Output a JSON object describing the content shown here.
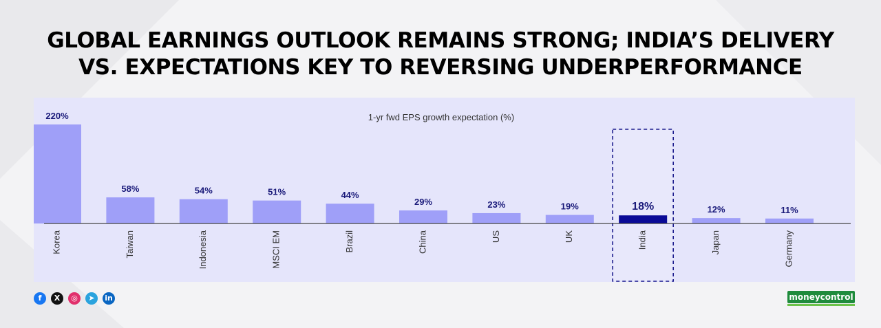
{
  "headline": {
    "line1": "GLOBAL EARNINGS OUTLOOK REMAINS STRONG; INDIA’S DELIVERY",
    "line2": "VS. EXPECTATIONS KEY TO REVERSING UNDERPERFORMANCE"
  },
  "chart_data": {
    "type": "bar",
    "title": "1-yr fwd EPS growth expectation (%)",
    "categories": [
      "Korea",
      "Taiwan",
      "Indonesia",
      "MSCI EM",
      "Brazil",
      "China",
      "US",
      "UK",
      "India",
      "Japan",
      "Germany"
    ],
    "values": [
      220,
      58,
      54,
      51,
      44,
      29,
      23,
      19,
      18,
      12,
      11
    ],
    "data_labels": [
      "220%",
      "58%",
      "54%",
      "51%",
      "44%",
      "29%",
      "23%",
      "19%",
      "18%",
      "12%",
      "11%"
    ],
    "highlight": "India",
    "ylim": [
      0,
      220
    ],
    "grid": false,
    "colors": {
      "bar": "#9f9ff8",
      "highlight_bar": "#0a0a96",
      "label": "#1a1a7a",
      "box": "#1a1a8c",
      "panel": "#e5e5fb"
    }
  },
  "social": [
    {
      "icon": "facebook-icon",
      "glyph": "f",
      "color": "#1877f2"
    },
    {
      "icon": "x-icon",
      "glyph": "X",
      "color": "#111111"
    },
    {
      "icon": "instagram-icon",
      "glyph": "◎",
      "color": "#e1306c"
    },
    {
      "icon": "telegram-icon",
      "glyph": "➤",
      "color": "#2aa3de"
    },
    {
      "icon": "linkedin-icon",
      "glyph": "in",
      "color": "#0a66c2"
    }
  ],
  "brand": {
    "name": "moneycontrol",
    "color": "#1f8b3c"
  }
}
